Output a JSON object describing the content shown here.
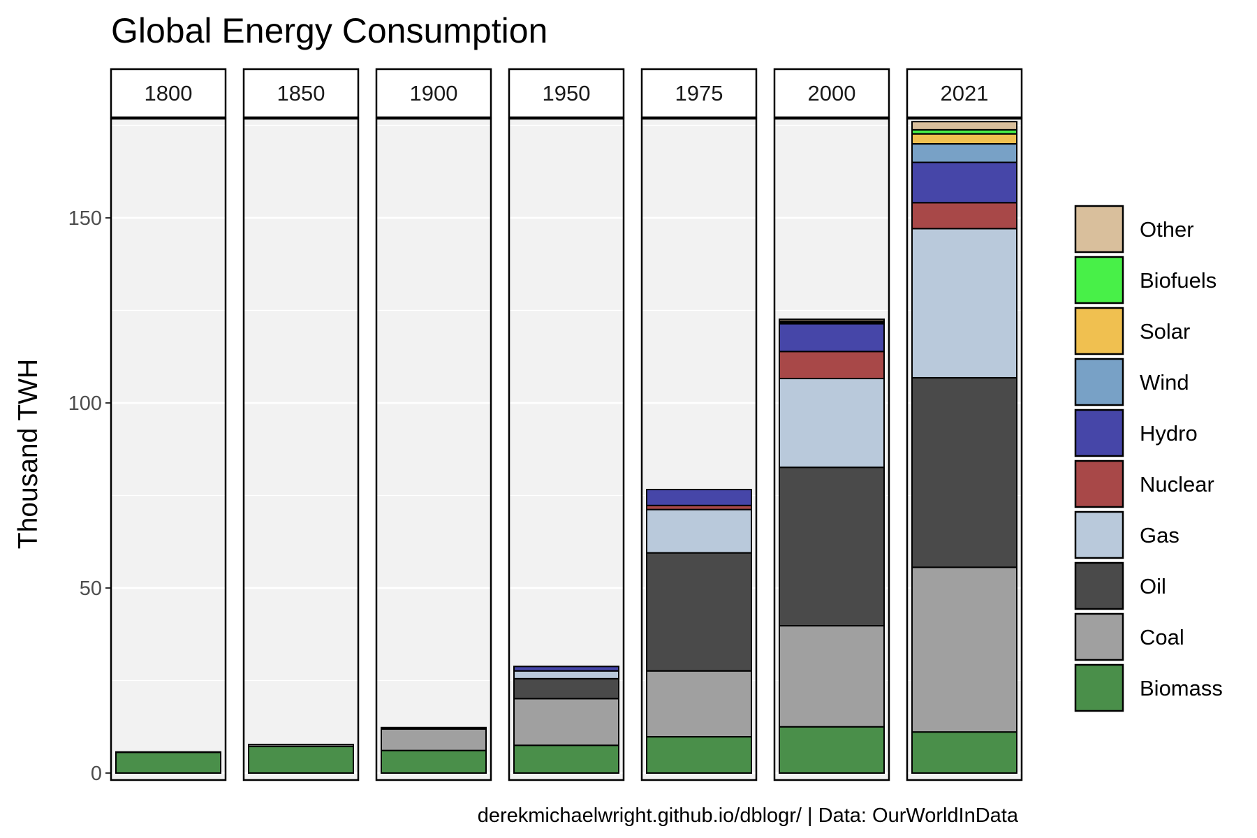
{
  "chart_data": {
    "type": "bar",
    "stacked": true,
    "faceted": true,
    "title": "Global Energy Consumption",
    "ylabel": "Thousand TWH",
    "xlabel": "",
    "caption": "derekmichaelwright.github.io/dblogr/ | Data: OurWorldInData",
    "ylim": [
      0,
      178
    ],
    "yticks": [
      0,
      50,
      100,
      150
    ],
    "grid": true,
    "legend_position": "right",
    "categories": [
      "1800",
      "1850",
      "1900",
      "1950",
      "1975",
      "2000",
      "2021"
    ],
    "series": [
      {
        "name": "Biomass",
        "color": "#4a8f4a",
        "values": [
          5.6,
          7.2,
          6.1,
          7.5,
          9.8,
          12.5,
          11.1
        ]
      },
      {
        "name": "Coal",
        "color": "#a0a0a0",
        "values": [
          0.1,
          0.5,
          5.8,
          12.6,
          17.8,
          27.3,
          44.5
        ]
      },
      {
        "name": "Oil",
        "color": "#4a4a4a",
        "values": [
          0,
          0,
          0.2,
          5.4,
          31.9,
          42.8,
          51.2
        ]
      },
      {
        "name": "Gas",
        "color": "#b9c9db",
        "values": [
          0,
          0,
          0.1,
          2.1,
          11.7,
          24.0,
          40.3
        ]
      },
      {
        "name": "Nuclear",
        "color": "#a84848",
        "values": [
          0,
          0,
          0,
          0,
          1.1,
          7.3,
          7.0
        ]
      },
      {
        "name": "Hydro",
        "color": "#4646a8",
        "values": [
          0,
          0,
          0.1,
          1.2,
          4.3,
          7.5,
          10.9
        ]
      },
      {
        "name": "Wind",
        "color": "#78a1c6",
        "values": [
          0,
          0,
          0,
          0,
          0,
          0.3,
          5.0
        ]
      },
      {
        "name": "Solar",
        "color": "#f0c050",
        "values": [
          0,
          0,
          0,
          0,
          0,
          0.1,
          2.7
        ]
      },
      {
        "name": "Biofuels",
        "color": "#48f048",
        "values": [
          0,
          0,
          0,
          0,
          0,
          0.3,
          1.1
        ]
      },
      {
        "name": "Other",
        "color": "#d9bf9c",
        "values": [
          0,
          0,
          0,
          0,
          0,
          0.5,
          2.2
        ]
      }
    ]
  },
  "legend_order": [
    "Other",
    "Biofuels",
    "Solar",
    "Wind",
    "Hydro",
    "Nuclear",
    "Gas",
    "Oil",
    "Coal",
    "Biomass"
  ],
  "colors": {
    "panel_background": "#f2f2f2",
    "gridline": "#ffffff",
    "strip_background": "#ffffff",
    "border": "#000000",
    "tick_text": "#4d4d4d"
  }
}
